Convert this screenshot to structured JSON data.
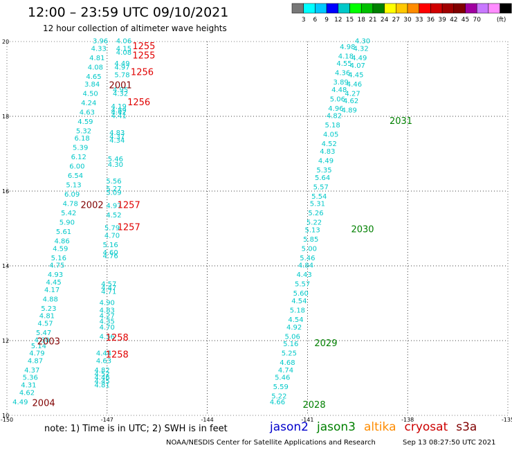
{
  "header": {
    "title": "12:00 – 23:59 UTC 09/10/2021",
    "subtitle": "12 hour collection of altimeter wave heights"
  },
  "legend": {
    "colors": [
      "#777777",
      "#00ffff",
      "#00c8ff",
      "#0000ff",
      "#00c8c8",
      "#00ff00",
      "#00c000",
      "#008000",
      "#ffff00",
      "#ffc800",
      "#ff8c00",
      "#ff0000",
      "#d00000",
      "#a00000",
      "#800000",
      "#a000a0",
      "#c878ff",
      "#ff8cff",
      "#000000"
    ],
    "labels": [
      "3",
      "6",
      "9",
      "12",
      "15",
      "18",
      "21",
      "24",
      "27",
      "30",
      "33",
      "36",
      "39",
      "42",
      "45",
      "70"
    ],
    "unit": "(ft)"
  },
  "chart_data": {
    "type": "scatter",
    "title": "12:00 – 23:59 UTC 09/10/2021",
    "subtitle": "12 hour collection of altimeter wave heights",
    "xlim": [
      -150,
      -135
    ],
    "ylim": [
      10,
      20
    ],
    "x_ticks": [
      "-150",
      "-147",
      "-144",
      "-141",
      "-138",
      "-135"
    ],
    "y_ticks": [
      "10",
      "12",
      "14",
      "16",
      "18",
      "20"
    ],
    "grid": true,
    "value_color": "#00c8c8",
    "pass_labels": [
      {
        "text": "1255",
        "x": -145.9,
        "y": 19.8,
        "color": "#e00000"
      },
      {
        "text": "1255",
        "x": -145.9,
        "y": 19.55,
        "color": "#e00000"
      },
      {
        "text": "1256",
        "x": -145.95,
        "y": 19.1,
        "color": "#e00000"
      },
      {
        "text": "2001",
        "x": -146.6,
        "y": 18.75,
        "color": "#800000"
      },
      {
        "text": "1256",
        "x": -146.05,
        "y": 18.3,
        "color": "#e00000"
      },
      {
        "text": "2031",
        "x": -138.2,
        "y": 17.8,
        "color": "#008000"
      },
      {
        "text": "2002",
        "x": -147.45,
        "y": 15.55,
        "color": "#800000"
      },
      {
        "text": "1257",
        "x": -146.35,
        "y": 15.55,
        "color": "#e00000"
      },
      {
        "text": "1257",
        "x": -146.35,
        "y": 14.95,
        "color": "#e00000"
      },
      {
        "text": "2030",
        "x": -139.35,
        "y": 14.9,
        "color": "#008000"
      },
      {
        "text": "1258",
        "x": -146.7,
        "y": 12.0,
        "color": "#e00000"
      },
      {
        "text": "2003",
        "x": -148.75,
        "y": 11.9,
        "color": "#800000"
      },
      {
        "text": "2029",
        "x": -140.45,
        "y": 11.85,
        "color": "#008000"
      },
      {
        "text": "1258",
        "x": -146.7,
        "y": 11.55,
        "color": "#e00000"
      },
      {
        "text": "2004",
        "x": -148.9,
        "y": 10.25,
        "color": "#800000"
      },
      {
        "text": "2028",
        "x": -140.8,
        "y": 10.2,
        "color": "#008000"
      }
    ],
    "series": [
      {
        "values": [
          {
            "x": -149.6,
            "y": 10.3,
            "v": "4.49"
          },
          {
            "x": -149.4,
            "y": 10.55,
            "v": "4.62"
          },
          {
            "x": -149.35,
            "y": 10.75,
            "v": "4.31"
          },
          {
            "x": -149.3,
            "y": 10.95,
            "v": "5.36"
          },
          {
            "x": -149.25,
            "y": 11.15,
            "v": "4.37"
          },
          {
            "x": -149.15,
            "y": 11.4,
            "v": "4.87"
          },
          {
            "x": -149.1,
            "y": 11.6,
            "v": "4.79"
          },
          {
            "x": -149.05,
            "y": 11.8,
            "v": "5.14"
          },
          {
            "x": -148.95,
            "y": 11.95,
            "v": "4.30"
          },
          {
            "x": -148.9,
            "y": 12.15,
            "v": "5.47"
          },
          {
            "x": -148.85,
            "y": 12.4,
            "v": "4.57"
          },
          {
            "x": -148.8,
            "y": 12.6,
            "v": "4.81"
          },
          {
            "x": -148.75,
            "y": 12.8,
            "v": "5.23"
          },
          {
            "x": -148.7,
            "y": 13.05,
            "v": "4.88"
          },
          {
            "x": -148.65,
            "y": 13.3,
            "v": "4.17"
          },
          {
            "x": -148.6,
            "y": 13.5,
            "v": "4.45"
          },
          {
            "x": -148.55,
            "y": 13.7,
            "v": "4.93"
          },
          {
            "x": -148.5,
            "y": 13.95,
            "v": "4.75"
          },
          {
            "x": -148.45,
            "y": 14.15,
            "v": "5.16"
          },
          {
            "x": -148.4,
            "y": 14.4,
            "v": "4.59"
          },
          {
            "x": -148.35,
            "y": 14.6,
            "v": "4.86"
          },
          {
            "x": -148.3,
            "y": 14.85,
            "v": "5.61"
          },
          {
            "x": -148.2,
            "y": 15.1,
            "v": "5.90"
          },
          {
            "x": -148.15,
            "y": 15.35,
            "v": "5.42"
          },
          {
            "x": -148.1,
            "y": 15.6,
            "v": "4.78"
          },
          {
            "x": -148.05,
            "y": 15.85,
            "v": "6.09"
          },
          {
            "x": -148.0,
            "y": 16.1,
            "v": "5.13"
          },
          {
            "x": -147.95,
            "y": 16.35,
            "v": "6.54"
          },
          {
            "x": -147.9,
            "y": 16.6,
            "v": "6.00"
          },
          {
            "x": -147.85,
            "y": 16.85,
            "v": "6.12"
          },
          {
            "x": -147.8,
            "y": 17.1,
            "v": "5.39"
          },
          {
            "x": -147.75,
            "y": 17.35,
            "v": "6.18"
          },
          {
            "x": -147.7,
            "y": 17.55,
            "v": "5.32"
          },
          {
            "x": -147.65,
            "y": 17.8,
            "v": "4.59"
          },
          {
            "x": -147.6,
            "y": 18.05,
            "v": "4.63"
          },
          {
            "x": -147.55,
            "y": 18.3,
            "v": "4.24"
          },
          {
            "x": -147.5,
            "y": 18.55,
            "v": "4.50"
          },
          {
            "x": -147.45,
            "y": 18.8,
            "v": "3.84"
          },
          {
            "x": -147.4,
            "y": 19.0,
            "v": "4.65"
          },
          {
            "x": -147.35,
            "y": 19.25,
            "v": "4.08"
          },
          {
            "x": -147.3,
            "y": 19.5,
            "v": "4.81"
          },
          {
            "x": -147.25,
            "y": 19.75,
            "v": "4.33"
          },
          {
            "x": -147.2,
            "y": 19.95,
            "v": "3.96"
          }
        ]
      },
      {
        "values": [
          {
            "x": -147.15,
            "y": 10.75,
            "v": "4.81"
          },
          {
            "x": -147.15,
            "y": 10.85,
            "v": "4.45"
          },
          {
            "x": -147.15,
            "y": 10.95,
            "v": "4.46"
          },
          {
            "x": -147.15,
            "y": 11.05,
            "v": "4.52"
          },
          {
            "x": -147.15,
            "y": 11.15,
            "v": "4.82"
          },
          {
            "x": -147.1,
            "y": 11.4,
            "v": "4.63"
          },
          {
            "x": -147.1,
            "y": 11.6,
            "v": "4.44"
          },
          {
            "x": -147.0,
            "y": 12.05,
            "v": "4.56"
          },
          {
            "x": -147.0,
            "y": 12.3,
            "v": "4.70"
          },
          {
            "x": -147.0,
            "y": 12.45,
            "v": "4.35"
          },
          {
            "x": -147.0,
            "y": 12.6,
            "v": "4.27"
          },
          {
            "x": -147.0,
            "y": 12.75,
            "v": "4.83"
          },
          {
            "x": -147.0,
            "y": 12.95,
            "v": "4.90"
          },
          {
            "x": -146.95,
            "y": 13.25,
            "v": "4.71"
          },
          {
            "x": -146.95,
            "y": 13.35,
            "v": "4.47"
          },
          {
            "x": -146.95,
            "y": 13.45,
            "v": "4.57"
          },
          {
            "x": -146.9,
            "y": 14.2,
            "v": "4.76"
          },
          {
            "x": -146.9,
            "y": 14.3,
            "v": "4.60"
          },
          {
            "x": -146.9,
            "y": 14.5,
            "v": "5.16"
          },
          {
            "x": -146.85,
            "y": 14.75,
            "v": "4.70"
          },
          {
            "x": -146.85,
            "y": 14.95,
            "v": "5.79"
          },
          {
            "x": -146.8,
            "y": 15.3,
            "v": "4.52"
          },
          {
            "x": -146.8,
            "y": 15.55,
            "v": "4.97"
          },
          {
            "x": -146.8,
            "y": 15.9,
            "v": "5.09"
          },
          {
            "x": -146.8,
            "y": 16.0,
            "v": "5.27"
          },
          {
            "x": -146.8,
            "y": 16.2,
            "v": "5.56"
          },
          {
            "x": -146.75,
            "y": 16.65,
            "v": "4.30"
          },
          {
            "x": -146.75,
            "y": 16.8,
            "v": "5.46"
          },
          {
            "x": -146.7,
            "y": 17.3,
            "v": "4.34"
          },
          {
            "x": -146.7,
            "y": 17.4,
            "v": "4.37"
          },
          {
            "x": -146.7,
            "y": 17.5,
            "v": "4.83"
          },
          {
            "x": -146.65,
            "y": 17.95,
            "v": "4.41"
          },
          {
            "x": -146.65,
            "y": 18.05,
            "v": "4.42"
          },
          {
            "x": -146.65,
            "y": 18.1,
            "v": "4.89"
          },
          {
            "x": -146.65,
            "y": 18.2,
            "v": "4.19"
          },
          {
            "x": -146.6,
            "y": 18.55,
            "v": "4.32"
          },
          {
            "x": -146.6,
            "y": 18.65,
            "v": "4.95"
          },
          {
            "x": -146.55,
            "y": 19.05,
            "v": "5.78"
          },
          {
            "x": -146.55,
            "y": 19.25,
            "v": "4.97"
          },
          {
            "x": -146.55,
            "y": 19.35,
            "v": "4.49"
          },
          {
            "x": -146.5,
            "y": 19.65,
            "v": "4.08"
          },
          {
            "x": -146.5,
            "y": 19.75,
            "v": "4.15"
          },
          {
            "x": -146.5,
            "y": 19.95,
            "v": "4.06"
          }
        ]
      },
      {
        "values": [
          {
            "x": -141.9,
            "y": 10.3,
            "v": "4.66"
          },
          {
            "x": -141.85,
            "y": 10.45,
            "v": "5.22"
          },
          {
            "x": -141.8,
            "y": 10.7,
            "v": "5.59"
          },
          {
            "x": -141.75,
            "y": 10.95,
            "v": "5.46"
          },
          {
            "x": -141.65,
            "y": 11.15,
            "v": "4.74"
          },
          {
            "x": -141.6,
            "y": 11.35,
            "v": "4.68"
          },
          {
            "x": -141.55,
            "y": 11.6,
            "v": "5.25"
          },
          {
            "x": -141.5,
            "y": 11.85,
            "v": "5.16"
          },
          {
            "x": -141.45,
            "y": 12.05,
            "v": "5.06"
          },
          {
            "x": -141.4,
            "y": 12.3,
            "v": "4.92"
          },
          {
            "x": -141.35,
            "y": 12.5,
            "v": "4.54"
          },
          {
            "x": -141.3,
            "y": 12.75,
            "v": "5.18"
          },
          {
            "x": -141.25,
            "y": 13.0,
            "v": "4.54"
          },
          {
            "x": -141.2,
            "y": 13.2,
            "v": "5.60"
          },
          {
            "x": -141.15,
            "y": 13.45,
            "v": "5.57"
          },
          {
            "x": -141.1,
            "y": 13.7,
            "v": "4.43"
          },
          {
            "x": -141.05,
            "y": 13.95,
            "v": "4.84"
          },
          {
            "x": -141.0,
            "y": 14.15,
            "v": "5.46"
          },
          {
            "x": -140.95,
            "y": 14.4,
            "v": "5.00"
          },
          {
            "x": -140.9,
            "y": 14.65,
            "v": "5.85"
          },
          {
            "x": -140.85,
            "y": 14.9,
            "v": "5.13"
          },
          {
            "x": -140.8,
            "y": 15.1,
            "v": "5.22"
          },
          {
            "x": -140.75,
            "y": 15.35,
            "v": "5.26"
          },
          {
            "x": -140.7,
            "y": 15.6,
            "v": "5.31"
          },
          {
            "x": -140.65,
            "y": 15.8,
            "v": "5.54"
          },
          {
            "x": -140.6,
            "y": 16.05,
            "v": "5.57"
          },
          {
            "x": -140.55,
            "y": 16.3,
            "v": "5.64"
          },
          {
            "x": -140.5,
            "y": 16.5,
            "v": "5.35"
          },
          {
            "x": -140.45,
            "y": 16.75,
            "v": "4.49"
          },
          {
            "x": -140.4,
            "y": 17.0,
            "v": "4.83"
          },
          {
            "x": -140.35,
            "y": 17.2,
            "v": "4.52"
          },
          {
            "x": -140.3,
            "y": 17.45,
            "v": "4.05"
          },
          {
            "x": -140.25,
            "y": 17.7,
            "v": "5.18"
          },
          {
            "x": -140.2,
            "y": 17.95,
            "v": "4.82"
          },
          {
            "x": -140.15,
            "y": 18.15,
            "v": "4.96"
          },
          {
            "x": -140.1,
            "y": 18.4,
            "v": "5.06"
          },
          {
            "x": -140.05,
            "y": 18.65,
            "v": "4.48"
          },
          {
            "x": -140.0,
            "y": 18.85,
            "v": "3.89"
          },
          {
            "x": -139.95,
            "y": 19.1,
            "v": "4.36"
          },
          {
            "x": -139.9,
            "y": 19.35,
            "v": "4.55"
          },
          {
            "x": -139.85,
            "y": 19.55,
            "v": "4.18"
          },
          {
            "x": -139.8,
            "y": 19.8,
            "v": "4.98"
          }
        ]
      },
      {
        "values": [
          {
            "x": -139.75,
            "y": 18.1,
            "v": "4.89"
          },
          {
            "x": -139.7,
            "y": 18.35,
            "v": "4.62"
          },
          {
            "x": -139.65,
            "y": 18.55,
            "v": "4.27"
          },
          {
            "x": -139.6,
            "y": 18.8,
            "v": "4.46"
          },
          {
            "x": -139.55,
            "y": 19.05,
            "v": "4.45"
          },
          {
            "x": -139.5,
            "y": 19.3,
            "v": "4.07"
          },
          {
            "x": -139.45,
            "y": 19.5,
            "v": "4.49"
          },
          {
            "x": -139.4,
            "y": 19.75,
            "v": "4.32"
          },
          {
            "x": -139.35,
            "y": 19.95,
            "v": "4.30"
          }
        ]
      }
    ]
  },
  "footer": {
    "note": "note:  1) Time is in UTC;  2) SWH is in feet",
    "satellites": [
      {
        "name": "jason2",
        "color": "#0000cc"
      },
      {
        "name": "jason3",
        "color": "#008000"
      },
      {
        "name": "altika",
        "color": "#ff8c00"
      },
      {
        "name": "cryosat",
        "color": "#cc0000"
      },
      {
        "name": "s3a",
        "color": "#800000"
      }
    ],
    "credit": "NOAA/NESDIS Center for Satellite Applications and Research",
    "timestamp": "Sep 13 08:27:50 UTC 2021"
  }
}
